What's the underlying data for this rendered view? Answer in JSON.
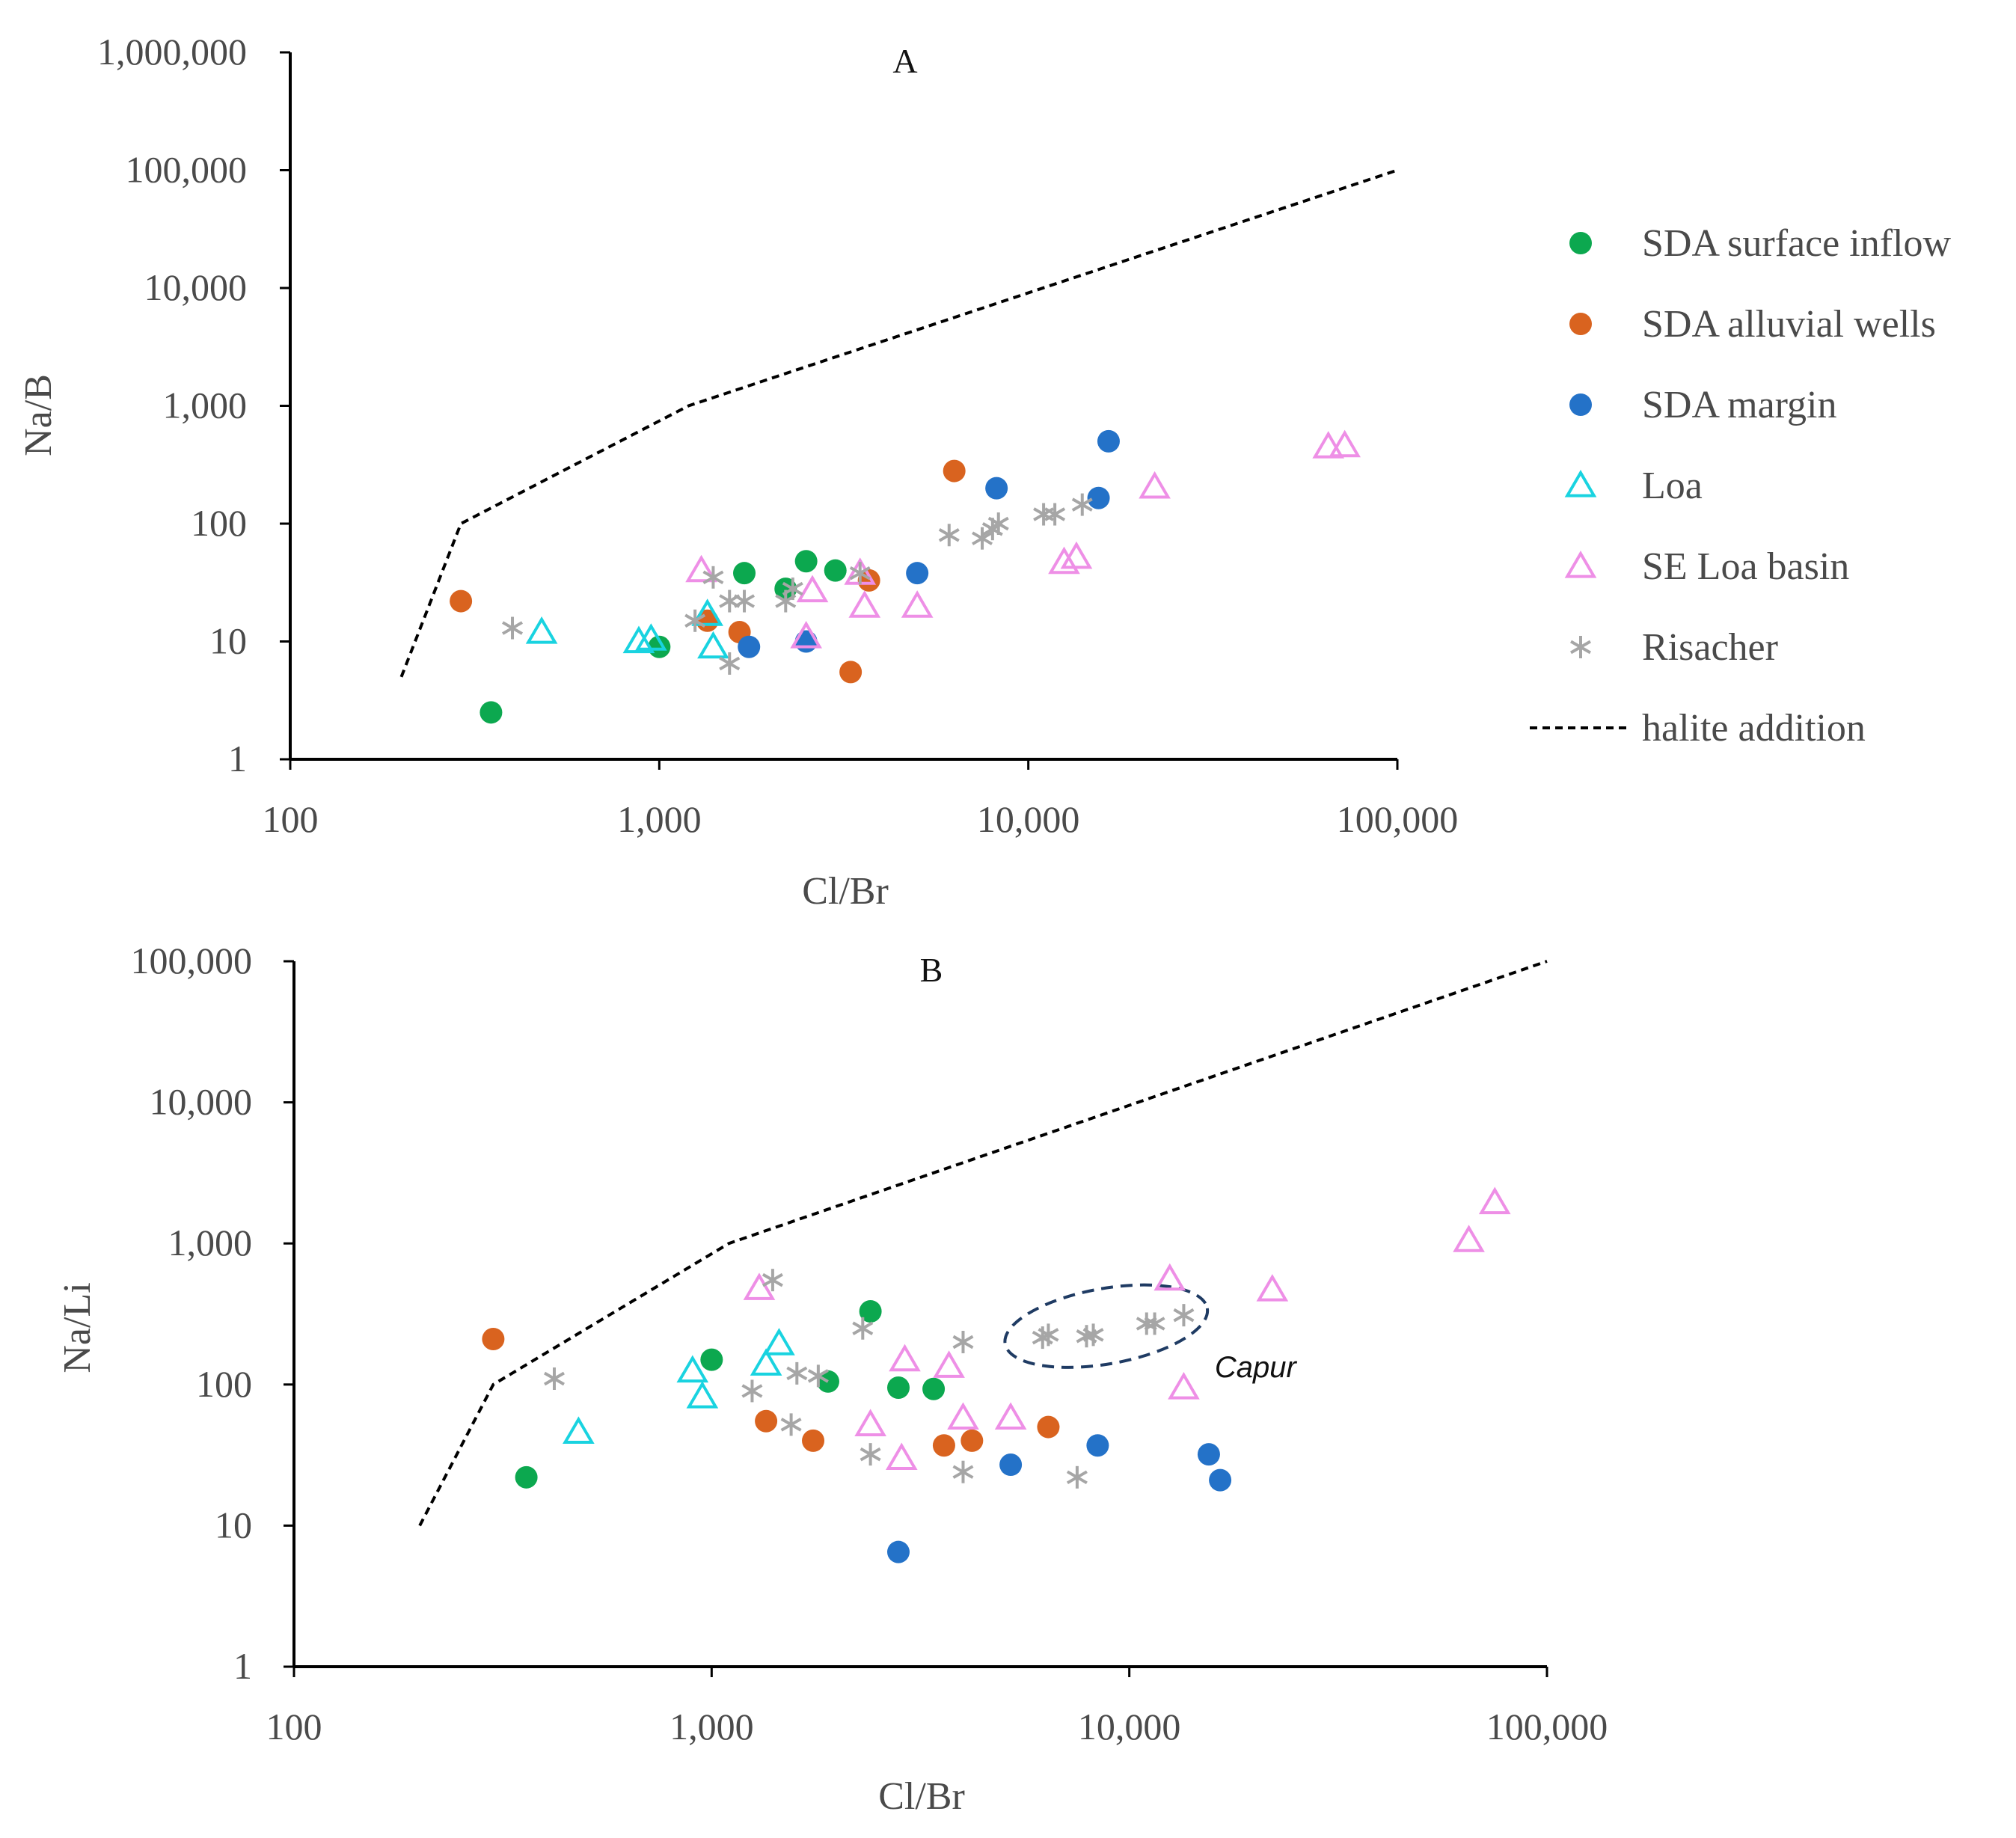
{
  "legend": {
    "items": [
      {
        "name": "SDA surface inflow",
        "marker": "circle",
        "color": "#0ca84f"
      },
      {
        "name": "SDA alluvial wells",
        "marker": "circle",
        "color": "#d9631f"
      },
      {
        "name": "SDA margin",
        "marker": "circle",
        "color": "#2472c8"
      },
      {
        "name": "Loa",
        "marker": "triangle",
        "color": "#19d3e0"
      },
      {
        "name": "SE  Loa basin",
        "marker": "triangle",
        "color": "#ee8fe6"
      },
      {
        "name": "Risacher",
        "marker": "star",
        "color": "#a6a6a6"
      },
      {
        "name": "halite addition",
        "marker": "dashed-line",
        "color": "#000000"
      }
    ]
  },
  "chart_data": [
    {
      "type": "scatter",
      "panel": "A",
      "title": "A",
      "xlabel": "Cl/Br",
      "ylabel": "Na/B",
      "xscale": "log",
      "yscale": "log",
      "xlim": [
        100,
        100000
      ],
      "ylim": [
        1,
        1000000
      ],
      "xticks": [
        "100",
        "1,000",
        "10,000",
        "100,000"
      ],
      "yticks": [
        "1",
        "10",
        "100",
        "1,000",
        "10,000",
        "100,000",
        "1,000,000"
      ],
      "halite_addition": {
        "x": [
          200,
          290,
          1200,
          100000
        ],
        "y": [
          5,
          100,
          1000,
          100000
        ]
      },
      "series": [
        {
          "name": "SDA surface inflow",
          "points": [
            [
              350,
              2.5
            ],
            [
              1000,
              9
            ],
            [
              1700,
              38
            ],
            [
              2200,
              28
            ],
            [
              2500,
              48
            ],
            [
              3000,
              40
            ]
          ]
        },
        {
          "name": "SDA alluvial wells",
          "points": [
            [
              290,
              22
            ],
            [
              1350,
              15
            ],
            [
              1650,
              12
            ],
            [
              3300,
              5.5
            ],
            [
              3700,
              33
            ],
            [
              6300,
              280
            ]
          ]
        },
        {
          "name": "SDA margin",
          "points": [
            [
              1750,
              9
            ],
            [
              2500,
              10
            ],
            [
              5000,
              38
            ],
            [
              8200,
              200
            ],
            [
              15500,
              165
            ],
            [
              16500,
              500
            ]
          ]
        },
        {
          "name": "Loa",
          "points": [
            [
              480,
              12
            ],
            [
              880,
              10
            ],
            [
              950,
              10.5
            ],
            [
              1350,
              17
            ],
            [
              1400,
              9
            ]
          ]
        },
        {
          "name": "SE  Loa basin",
          "points": [
            [
              1300,
              40
            ],
            [
              2500,
              11
            ],
            [
              2600,
              27
            ],
            [
              3500,
              38
            ],
            [
              3600,
              20
            ],
            [
              5000,
              20
            ],
            [
              12500,
              47
            ],
            [
              13500,
              52
            ],
            [
              22000,
              205
            ],
            [
              65000,
              450
            ],
            [
              72000,
              460
            ]
          ]
        },
        {
          "name": "Risacher",
          "points": [
            [
              400,
              13
            ],
            [
              1250,
              15
            ],
            [
              1400,
              35
            ],
            [
              1550,
              6.5
            ],
            [
              1550,
              22
            ],
            [
              1700,
              22
            ],
            [
              2200,
              22
            ],
            [
              2300,
              28
            ],
            [
              3500,
              38
            ],
            [
              6100,
              80
            ],
            [
              7500,
              75
            ],
            [
              8000,
              90
            ],
            [
              8300,
              100
            ],
            [
              11000,
              120
            ],
            [
              11800,
              120
            ],
            [
              14000,
              145
            ]
          ]
        }
      ]
    },
    {
      "type": "scatter",
      "panel": "B",
      "title": "B",
      "xlabel": "Cl/Br",
      "ylabel": "Na/Li",
      "xscale": "log",
      "yscale": "log",
      "xlim": [
        100,
        100000
      ],
      "ylim": [
        1,
        100000
      ],
      "xticks": [
        "100",
        "1,000",
        "10,000",
        "100,000"
      ],
      "yticks": [
        "1",
        "10",
        "100",
        "1,000",
        "10,000",
        "100,000"
      ],
      "halite_addition": {
        "x": [
          200,
          300,
          1100,
          100000
        ],
        "y": [
          10,
          100,
          1000,
          100000
        ]
      },
      "annotation": {
        "text": "Capur",
        "ellipse_x": [
          5000,
          15500
        ],
        "ellipse_y": [
          140,
          480
        ]
      },
      "series": [
        {
          "name": "SDA surface inflow",
          "points": [
            [
              360,
              22
            ],
            [
              1000,
              150
            ],
            [
              1900,
              105
            ],
            [
              2400,
              330
            ],
            [
              2800,
              95
            ],
            [
              3400,
              93
            ]
          ]
        },
        {
          "name": "SDA alluvial wells",
          "points": [
            [
              300,
              210
            ],
            [
              1350,
              55
            ],
            [
              1750,
              40
            ],
            [
              3600,
              37
            ],
            [
              4200,
              40
            ],
            [
              6400,
              50
            ]
          ]
        },
        {
          "name": "SDA margin",
          "points": [
            [
              2800,
              6.5
            ],
            [
              5200,
              27
            ],
            [
              8400,
              37
            ],
            [
              15500,
              32
            ],
            [
              16500,
              21
            ]
          ]
        },
        {
          "name": "Loa",
          "points": [
            [
              480,
              46
            ],
            [
              900,
              125
            ],
            [
              950,
              82
            ],
            [
              1350,
              140
            ],
            [
              1450,
              195
            ]
          ]
        },
        {
          "name": "SE  Loa basin",
          "points": [
            [
              1300,
              480
            ],
            [
              2400,
              52
            ],
            [
              2850,
              30
            ],
            [
              2900,
              150
            ],
            [
              3700,
              135
            ],
            [
              4000,
              58
            ],
            [
              5200,
              58
            ],
            [
              12500,
              560
            ],
            [
              13500,
              95
            ],
            [
              22000,
              470
            ],
            [
              65000,
              1050
            ],
            [
              75000,
              1950
            ]
          ]
        },
        {
          "name": "Risacher",
          "points": [
            [
              420,
              110
            ],
            [
              1250,
              90
            ],
            [
              1400,
              550
            ],
            [
              1550,
              52
            ],
            [
              1600,
              120
            ],
            [
              1800,
              115
            ],
            [
              2300,
              250
            ],
            [
              2400,
              32
            ],
            [
              4000,
              200
            ],
            [
              4000,
              24
            ],
            [
              6200,
              215
            ],
            [
              6400,
              225
            ],
            [
              7500,
              22
            ],
            [
              7900,
              220
            ],
            [
              8200,
              225
            ],
            [
              11000,
              270
            ],
            [
              11500,
              270
            ],
            [
              13500,
              310
            ]
          ]
        }
      ]
    }
  ]
}
